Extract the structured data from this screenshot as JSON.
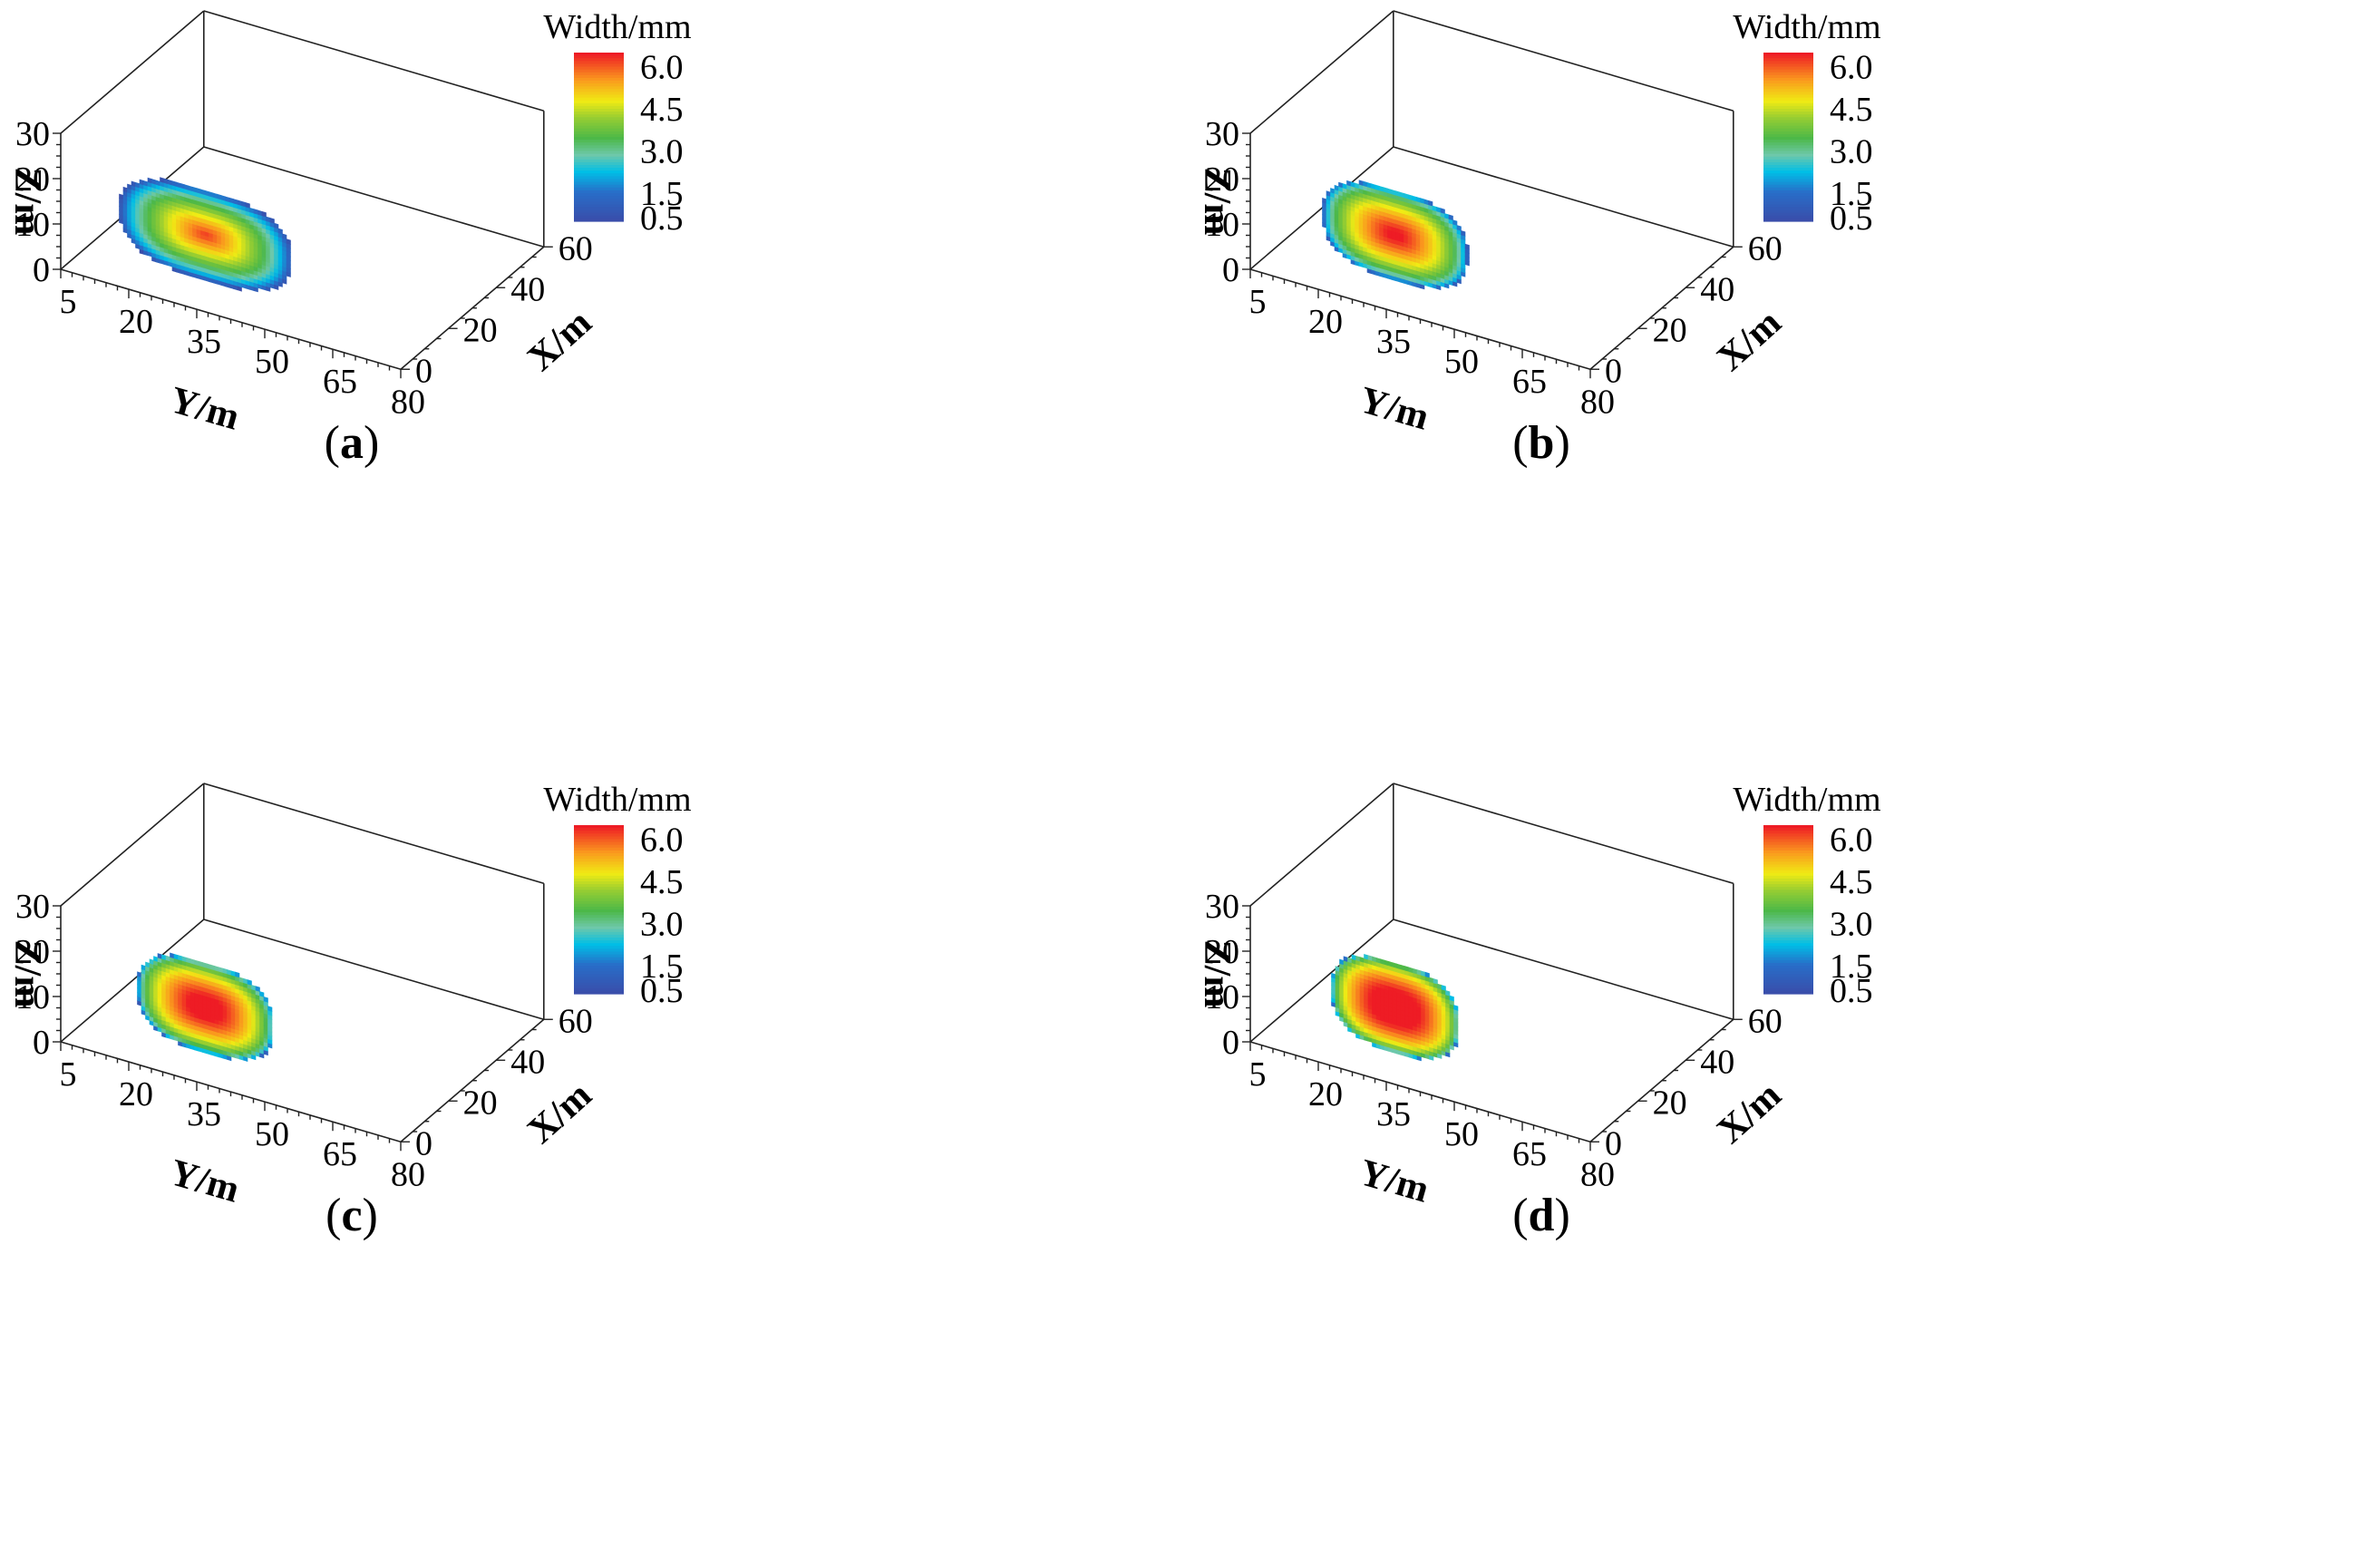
{
  "chart_data": [
    {
      "type": "heatmap",
      "caption": "a",
      "title": "",
      "xlabel": "Y/m",
      "ylabel": "X/m",
      "zlabel": "Z/m",
      "y_ticks": [
        "5",
        "20",
        "35",
        "50",
        "65",
        "80"
      ],
      "x_ticks": [
        "0",
        "20",
        "40",
        "60"
      ],
      "z_ticks": [
        "0",
        "10",
        "20",
        "30"
      ],
      "colorbar": {
        "title": "Width/mm",
        "ticks": [
          "6.0",
          "4.5",
          "3.0",
          "1.5",
          "0.5"
        ],
        "range": [
          0.5,
          6.5
        ]
      },
      "fracture": {
        "y_center": 37,
        "y_half_length": 19,
        "z_center": 17,
        "z_half_height": 10,
        "max_width_mm": 6.3,
        "shape_exponent": 0.6
      },
      "colors": {
        "low": "#3b4ba8",
        "mid": "#4cb848",
        "high": "#ee1c25"
      }
    },
    {
      "type": "heatmap",
      "caption": "b",
      "title": "",
      "xlabel": "Y/m",
      "ylabel": "X/m",
      "zlabel": "Z/m",
      "y_ticks": [
        "5",
        "20",
        "35",
        "50",
        "65",
        "80"
      ],
      "x_ticks": [
        "0",
        "20",
        "40",
        "60"
      ],
      "z_ticks": [
        "0",
        "10",
        "20",
        "30"
      ],
      "colorbar": {
        "title": "Width/mm",
        "ticks": [
          "6.0",
          "4.5",
          "3.0",
          "1.5",
          "0.5"
        ],
        "range": [
          0.5,
          6.5
        ]
      },
      "fracture": {
        "y_center": 37,
        "y_half_length": 16,
        "z_center": 17,
        "z_half_height": 10,
        "max_width_mm": 6.8,
        "shape_exponent": 0.45
      },
      "colors": {
        "low": "#3b4ba8",
        "mid": "#4cb848",
        "high": "#ee1c25"
      }
    },
    {
      "type": "heatmap",
      "caption": "c",
      "title": "",
      "xlabel": "Y/m",
      "ylabel": "X/m",
      "zlabel": "Z/m",
      "y_ticks": [
        "5",
        "20",
        "35",
        "50",
        "65",
        "80"
      ],
      "x_ticks": [
        "0",
        "20",
        "40",
        "60"
      ],
      "z_ticks": [
        "0",
        "10",
        "20",
        "30"
      ],
      "colorbar": {
        "title": "Width/mm",
        "ticks": [
          "6.0",
          "4.5",
          "3.0",
          "1.5",
          "0.5"
        ],
        "range": [
          0.5,
          6.5
        ]
      },
      "fracture": {
        "y_center": 37,
        "y_half_length": 15,
        "z_center": 17,
        "z_half_height": 10,
        "max_width_mm": 7.2,
        "shape_exponent": 0.38
      },
      "colors": {
        "low": "#3b4ba8",
        "mid": "#4cb848",
        "high": "#ee1c25"
      }
    },
    {
      "type": "heatmap",
      "caption": "d",
      "title": "",
      "xlabel": "Y/m",
      "ylabel": "X/m",
      "zlabel": "Z/m",
      "y_ticks": [
        "5",
        "20",
        "35",
        "50",
        "65",
        "80"
      ],
      "x_ticks": [
        "0",
        "20",
        "40",
        "60"
      ],
      "z_ticks": [
        "0",
        "10",
        "20",
        "30"
      ],
      "colorbar": {
        "title": "Width/mm",
        "ticks": [
          "6.0",
          "4.5",
          "3.0",
          "1.5",
          "0.5"
        ],
        "range": [
          0.5,
          6.5
        ]
      },
      "fracture": {
        "y_center": 37,
        "y_half_length": 14,
        "z_center": 17,
        "z_half_height": 10,
        "max_width_mm": 7.5,
        "shape_exponent": 0.32
      },
      "colors": {
        "low": "#3b4ba8",
        "mid": "#4cb848",
        "high": "#ee1c25"
      }
    }
  ]
}
